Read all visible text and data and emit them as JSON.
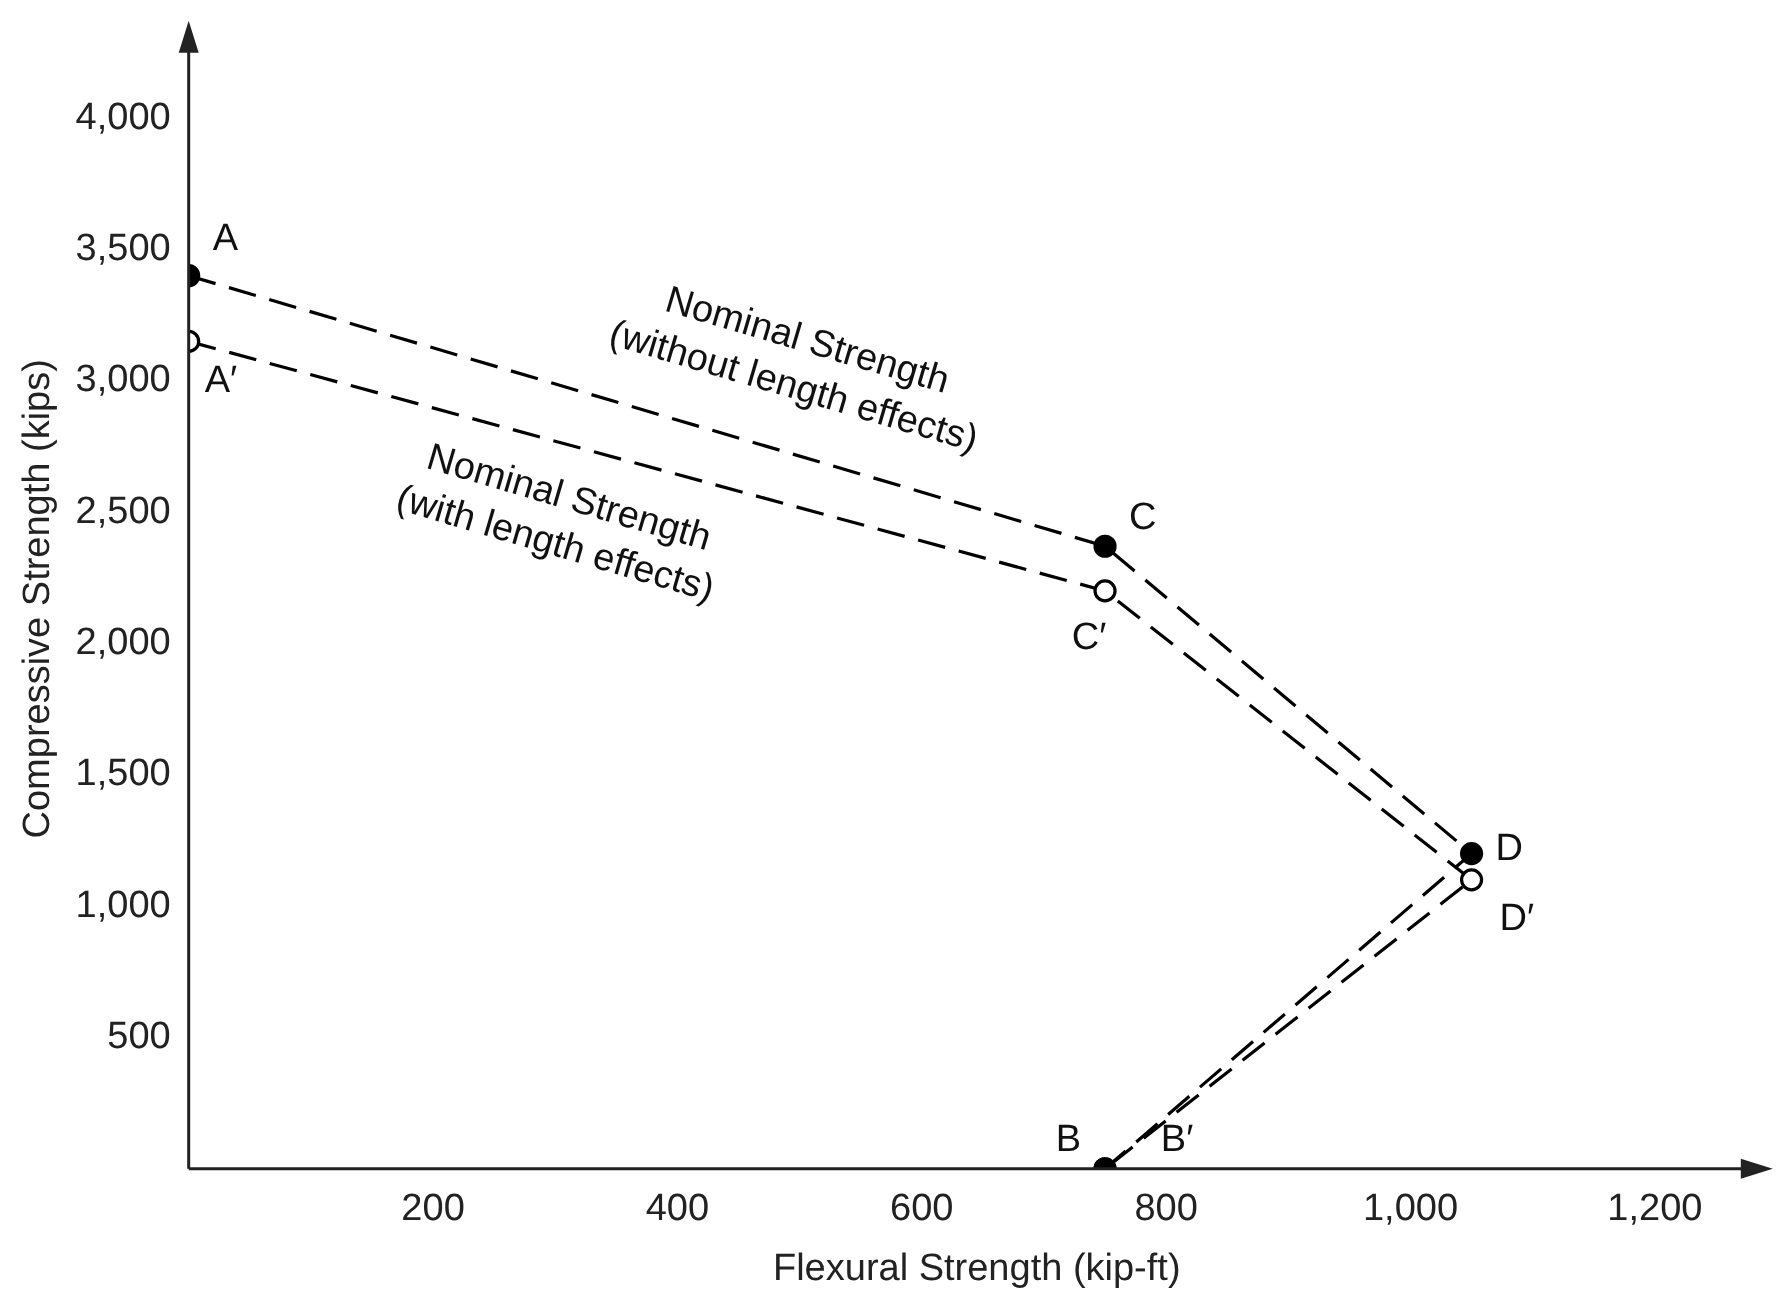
{
  "chart_data": {
    "type": "line",
    "xlabel": "Flexural Strength (kip-ft)",
    "ylabel": "Compressive Strength (kips)",
    "xlim": [
      0,
      1290
    ],
    "ylim": [
      0,
      4340
    ],
    "xticks": [
      {
        "value": 200,
        "label": "200"
      },
      {
        "value": 400,
        "label": "400"
      },
      {
        "value": 600,
        "label": "600"
      },
      {
        "value": 800,
        "label": "800"
      },
      {
        "value": 1000,
        "label": "1,000"
      },
      {
        "value": 1200,
        "label": "1,200"
      }
    ],
    "yticks": [
      {
        "value": 500,
        "label": "500"
      },
      {
        "value": 1000,
        "label": "1,000"
      },
      {
        "value": 1500,
        "label": "1,500"
      },
      {
        "value": 2000,
        "label": "2,000"
      },
      {
        "value": 2500,
        "label": "2,500"
      },
      {
        "value": 3000,
        "label": "3,000"
      },
      {
        "value": 3500,
        "label": "3,500"
      },
      {
        "value": 4000,
        "label": "4,000"
      }
    ],
    "grid": false,
    "legend": false,
    "line_style": "dashed",
    "marker": "circle",
    "series": [
      {
        "color": "#000000",
        "x": [
          0,
          750,
          1050,
          750
        ],
        "values": [
          3400,
          2370,
          1200,
          0
        ]
      },
      {
        "color": "#000000",
        "x": [
          0,
          750,
          1050,
          750
        ],
        "values": [
          3150,
          2200,
          1100,
          0
        ]
      }
    ],
    "annotations": [
      {
        "text": "A",
        "x": 0,
        "y": 3400
      },
      {
        "text": "C",
        "x": 750,
        "y": 2370
      },
      {
        "text": "D",
        "x": 1050,
        "y": 1200
      },
      {
        "text": "B",
        "x": 750,
        "y": 0
      },
      {
        "text": "A′",
        "x": 0,
        "y": 3150
      },
      {
        "text": "C′",
        "x": 750,
        "y": 2200
      },
      {
        "text": "D′",
        "x": 1050,
        "y": 1100
      },
      {
        "text": "B′",
        "x": 750,
        "y": 0
      },
      {
        "text": "Nominal Strength\n(without length effects)",
        "x": 480,
        "y": 2740
      },
      {
        "text": "Nominal Strength\n(with length effects)",
        "x": 323,
        "y": 2740
      }
    ]
  }
}
